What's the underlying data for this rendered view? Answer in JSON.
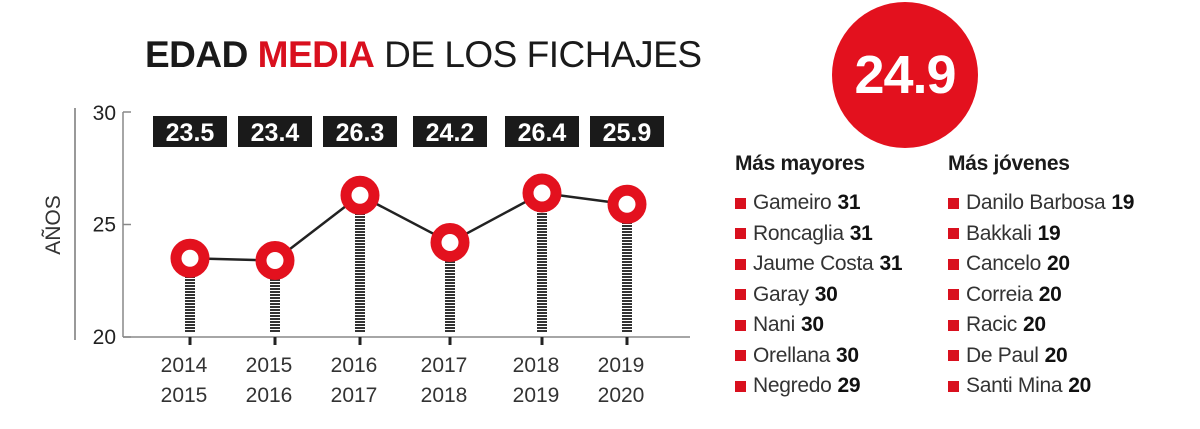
{
  "title": {
    "part1": "EDAD",
    "part2": "MEDIA",
    "part3": "DE LOS FICHAJES"
  },
  "average": "24.9",
  "colors": {
    "accent": "#e3111e",
    "label_bg": "#1a1a1a",
    "line": "#222222"
  },
  "chart_data": {
    "type": "line",
    "ylabel": "AÑOS",
    "ylim": [
      20,
      30
    ],
    "yticks": [
      "20",
      "25",
      "30"
    ],
    "categories": [
      [
        "2014",
        "2015"
      ],
      [
        "2015",
        "2016"
      ],
      [
        "2016",
        "2017"
      ],
      [
        "2017",
        "2018"
      ],
      [
        "2018",
        "2019"
      ],
      [
        "2019",
        "2020"
      ]
    ],
    "values": [
      23.5,
      23.4,
      26.3,
      24.2,
      26.4,
      25.9
    ],
    "data_labels": [
      "23.5",
      "23.4",
      "26.3",
      "24.2",
      "26.4",
      "25.9"
    ]
  },
  "oldest": {
    "heading": "Más mayores",
    "items": [
      {
        "name": "Gameiro",
        "age": "31"
      },
      {
        "name": "Roncaglia",
        "age": "31"
      },
      {
        "name": "Jaume Costa",
        "age": "31"
      },
      {
        "name": "Garay",
        "age": "30"
      },
      {
        "name": "Nani",
        "age": "30"
      },
      {
        "name": "Orellana",
        "age": "30"
      },
      {
        "name": "Negredo",
        "age": "29"
      }
    ]
  },
  "youngest": {
    "heading": "Más jóvenes",
    "items": [
      {
        "name": "Danilo Barbosa",
        "age": "19"
      },
      {
        "name": "Bakkali",
        "age": "19"
      },
      {
        "name": "Cancelo",
        "age": "20"
      },
      {
        "name": "Correia",
        "age": "20"
      },
      {
        "name": "Racic",
        "age": "20"
      },
      {
        "name": "De Paul",
        "age": "20"
      },
      {
        "name": "Santi Mina",
        "age": "20"
      }
    ]
  }
}
